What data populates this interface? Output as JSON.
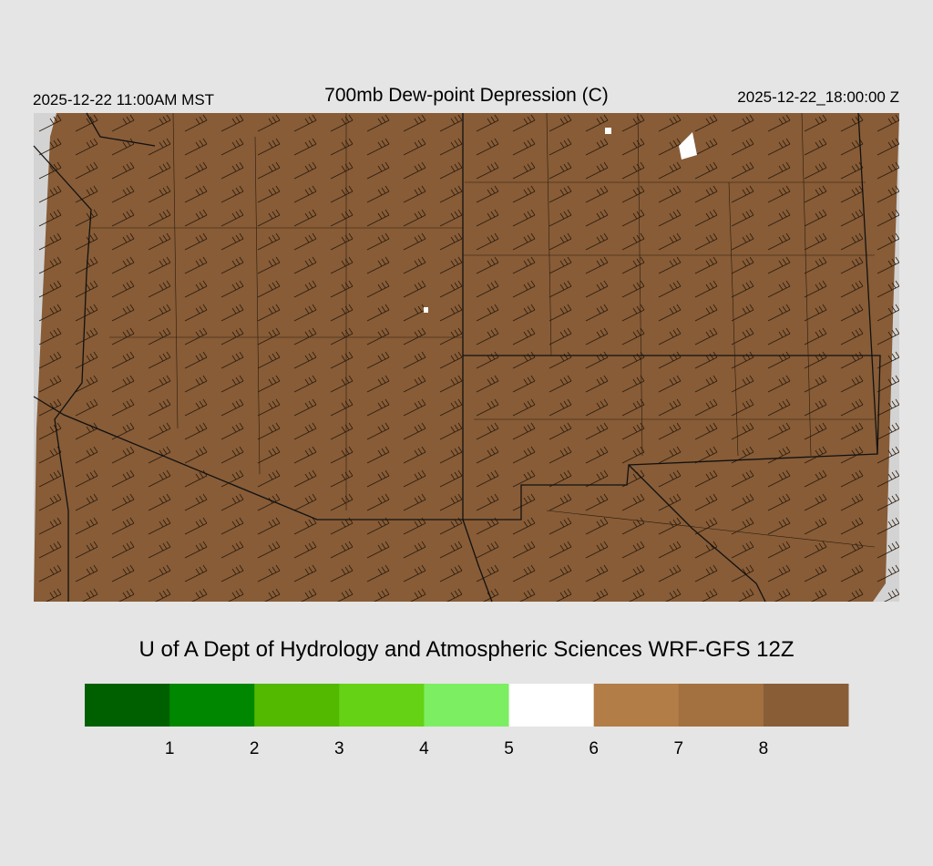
{
  "header": {
    "valid_local": "2025-12-22 11:00AM MST",
    "title": "700mb Dew-point Depression (C)",
    "valid_utc": "2025-12-22_18:00:00 Z"
  },
  "credit": "U of A Dept of Hydrology and Atmospheric Sciences WRF-GFS 12Z",
  "colorbar": {
    "colors": [
      "#006000",
      "#008700",
      "#52b900",
      "#66d216",
      "#7bee62",
      "#ffffff",
      "#b27d47",
      "#a3703f",
      "#895e37"
    ],
    "levels": [
      1,
      2,
      3,
      4,
      5,
      6,
      7,
      8
    ]
  }
}
